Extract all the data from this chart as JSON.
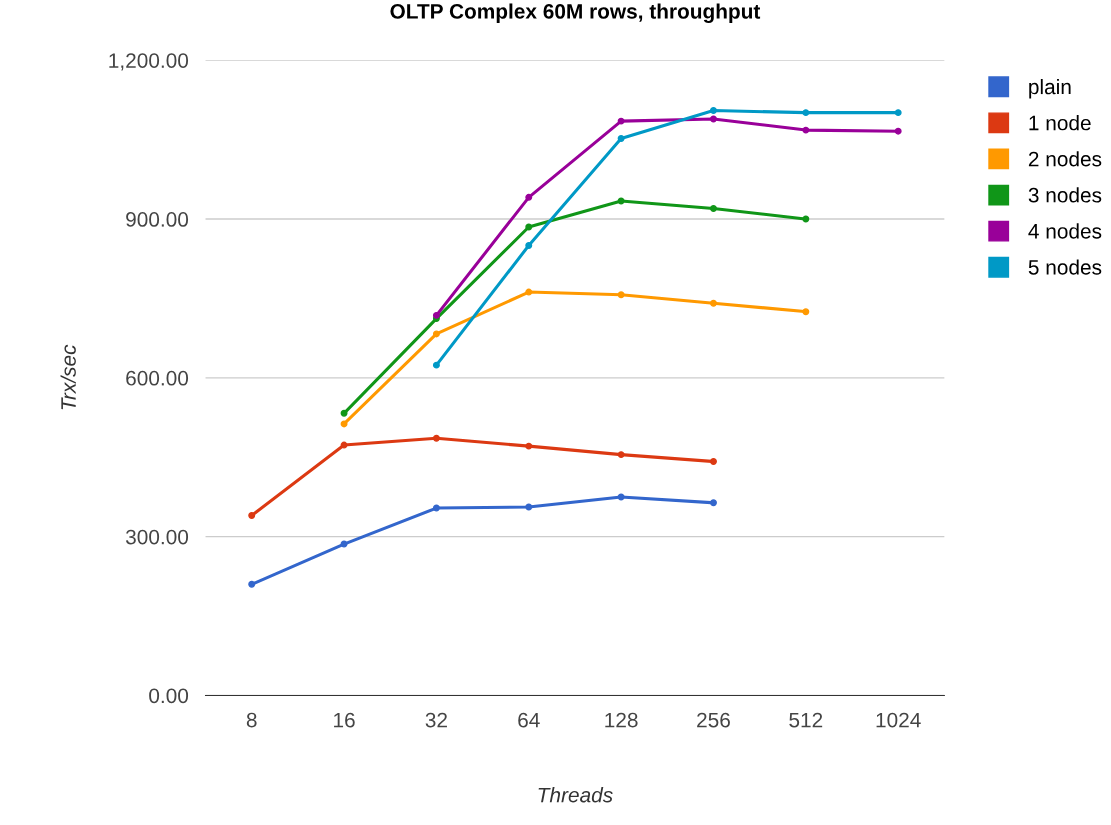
{
  "chart_data": {
    "type": "line",
    "title": "OLTP Complex 60M rows, throughput",
    "xlabel": "Threads",
    "ylabel": "Trx/sec",
    "categories": [
      "8",
      "16",
      "32",
      "64",
      "128",
      "256",
      "512",
      "1024"
    ],
    "series": [
      {
        "name": "plain",
        "color": "#3366cc",
        "values": [
          210,
          286,
          354,
          356,
          375,
          364,
          null,
          null
        ]
      },
      {
        "name": "1 node",
        "color": "#dc3912",
        "values": [
          340,
          473,
          486,
          471,
          455,
          442,
          null,
          null
        ]
      },
      {
        "name": "2 nodes",
        "color": "#ff9900",
        "values": [
          null,
          513,
          683,
          762,
          757,
          741,
          725,
          null
        ]
      },
      {
        "name": "3 nodes",
        "color": "#109618",
        "values": [
          null,
          533,
          712,
          885,
          934,
          920,
          900,
          null
        ]
      },
      {
        "name": "4 nodes",
        "color": "#990099",
        "values": [
          null,
          null,
          718,
          941,
          1085,
          1089,
          1068,
          1066
        ]
      },
      {
        "name": "5 nodes",
        "color": "#0099c6",
        "values": [
          null,
          null,
          624,
          850,
          1052,
          1105,
          1101,
          1101
        ]
      }
    ],
    "ylim": [
      0,
      1200
    ],
    "yticks": [
      {
        "value": 0,
        "label": "0.00"
      },
      {
        "value": 300,
        "label": "300.00"
      },
      {
        "value": 600,
        "label": "600.00"
      },
      {
        "value": 900,
        "label": "900.00"
      },
      {
        "value": 1200,
        "label": "1,200.00"
      }
    ],
    "grid": "y",
    "legend": "right",
    "marker": "circle",
    "line_style": "solid"
  }
}
